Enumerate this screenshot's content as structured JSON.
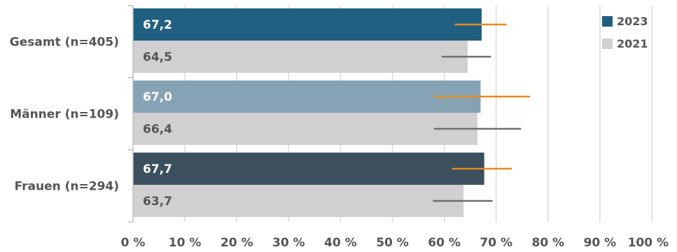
{
  "chart_data": {
    "type": "bar",
    "orientation": "horizontal",
    "categories": [
      "Gesamt (n=405)",
      "Männer (n=109)",
      "Frauen (n=294)"
    ],
    "series": [
      {
        "name": "2023",
        "values": [
          67.2,
          67.0,
          67.7
        ],
        "value_labels": [
          "67,2",
          "67,0",
          "67,7"
        ],
        "error_low": [
          62.0,
          58.0,
          61.5
        ],
        "error_high": [
          72.0,
          76.5,
          73.0
        ],
        "bar_colors": [
          "#215f80",
          "#86a3b5",
          "#3b4f5e"
        ],
        "error_color": "#e58a1f",
        "label_color": "#ffffff"
      },
      {
        "name": "2021",
        "values": [
          64.5,
          66.4,
          63.7
        ],
        "value_labels": [
          "64,5",
          "66,4",
          "63,7"
        ],
        "error_low": [
          59.5,
          58.0,
          57.8
        ],
        "error_high": [
          69.0,
          74.8,
          69.3
        ],
        "bar_colors": [
          "#d1cfcf",
          "#d1cfcf",
          "#d1cfcf"
        ],
        "error_color": "#6e6e6e",
        "label_color": "#555555"
      }
    ],
    "xlim": [
      0,
      100
    ],
    "xticks": [
      0,
      10,
      20,
      30,
      40,
      50,
      60,
      70,
      80,
      90,
      100
    ],
    "xtick_labels": [
      "0 %",
      "10 %",
      "20 %",
      "30 %",
      "40 %",
      "50 %",
      "60 %",
      "70 %",
      "80 %",
      "90 %",
      "100 %"
    ],
    "grid": true,
    "legend": {
      "position": "top-right",
      "entries": [
        {
          "label": "2023",
          "color": "#215f80"
        },
        {
          "label": "2021",
          "color": "#d1cfcf"
        }
      ]
    }
  }
}
